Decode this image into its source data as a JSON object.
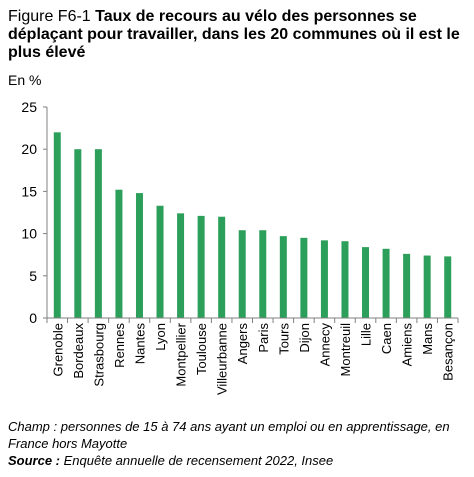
{
  "header": {
    "figure_number": "Figure F6-1",
    "title": "Taux de recours au vélo des personnes se déplaçant pour travailler, dans les 20 communes où il est le plus élevé",
    "unit": "En %"
  },
  "footer": {
    "champ": "Champ : personnes de 15 à 74 ans ayant un emploi ou en apprentissage, en France hors Mayotte",
    "source_label": "Source :",
    "source_text": " Enquête annuelle de recensement 2022, Insee"
  },
  "colors": {
    "bar": "#2ca05a",
    "axis": "#808080",
    "grid": "#d9d9d9"
  },
  "chart_data": {
    "type": "bar",
    "title": "Taux de recours au vélo des personnes se déplaçant pour travailler, dans les 20 communes où il est le plus élevé",
    "ylabel": "En %",
    "ylim": [
      0,
      25
    ],
    "yticks": [
      0,
      5,
      10,
      15,
      20,
      25
    ],
    "grid": false,
    "categories": [
      "Grenoble",
      "Bordeaux",
      "Strasbourg",
      "Rennes",
      "Nantes",
      "Lyon",
      "Montpellier",
      "Toulouse",
      "Villeurbanne",
      "Angers",
      "Paris",
      "Tours",
      "Dijon",
      "Annecy",
      "Montreuil",
      "Lille",
      "Caen",
      "Amiens",
      "Mans",
      "Besançon"
    ],
    "values": [
      22.0,
      20.0,
      20.0,
      15.2,
      14.8,
      13.3,
      12.4,
      12.1,
      12.0,
      10.4,
      10.4,
      9.7,
      9.5,
      9.2,
      9.1,
      8.4,
      8.2,
      7.6,
      7.4,
      7.3
    ]
  }
}
